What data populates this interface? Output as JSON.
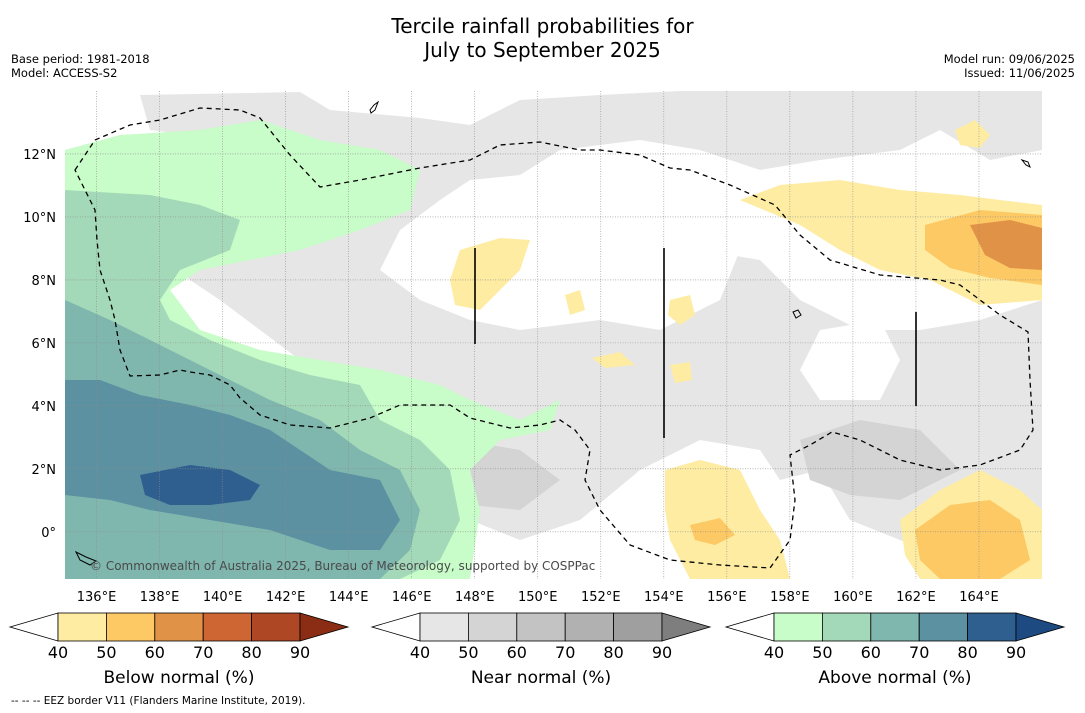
{
  "header": {
    "title_line1": "Tercile rainfall probabilities for",
    "title_line2": "July to September 2025",
    "base_period": "Base period: 1981-2018",
    "model": "Model: ACCESS-S2",
    "model_run": "Model run: 09/06/2025",
    "issued": "Issued: 11/06/2025"
  },
  "map": {
    "lon_ticks": [
      "136°E",
      "138°E",
      "140°E",
      "142°E",
      "144°E",
      "146°E",
      "148°E",
      "150°E",
      "152°E",
      "154°E",
      "156°E",
      "158°E",
      "160°E",
      "162°E",
      "164°E"
    ],
    "lat_ticks": [
      "12°N",
      "10°N",
      "8°N",
      "6°N",
      "4°N",
      "2°N",
      "0°"
    ],
    "lon_range": [
      135,
      166
    ],
    "lat_range": [
      -1.5,
      14
    ],
    "copyright": "© Commonwealth of Australia 2025, Bureau of Meteorology, supported by COSPPac",
    "grid": true
  },
  "colorbars": [
    {
      "label": "Below normal (%)",
      "ticks": [
        "40",
        "50",
        "60",
        "70",
        "80",
        "90"
      ],
      "colors": [
        "#ffffff",
        "#fdeca2",
        "#fdc964",
        "#e09247",
        "#cd6632",
        "#ad4724",
        "#8a2d14"
      ]
    },
    {
      "label": "Near normal (%)",
      "ticks": [
        "40",
        "50",
        "60",
        "70",
        "80",
        "90"
      ],
      "colors": [
        "#ffffff",
        "#e6e6e6",
        "#d4d4d4",
        "#c3c3c3",
        "#b1b1b1",
        "#9f9f9f",
        "#7e7e7e"
      ]
    },
    {
      "label": "Above normal (%)",
      "ticks": [
        "40",
        "50",
        "60",
        "70",
        "80",
        "90"
      ],
      "colors": [
        "#ffffff",
        "#c8fcc8",
        "#a3d9b8",
        "#7fb6ae",
        "#5b91a0",
        "#2f5f8f",
        "#1d4a80"
      ]
    }
  ],
  "footnote": "--  --  -- EEZ border V11 (Flanders Marine Institute, 2019)."
}
